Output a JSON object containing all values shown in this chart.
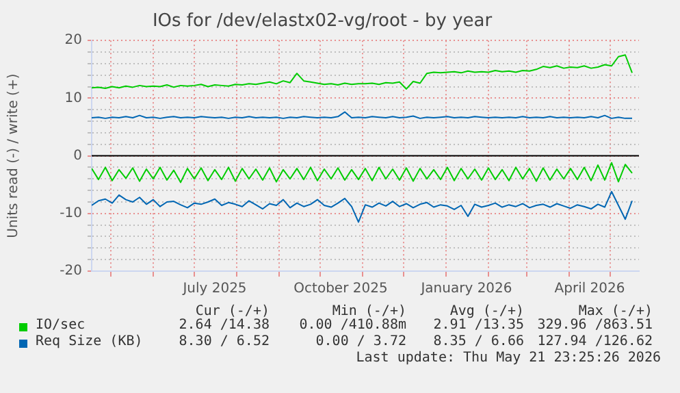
{
  "chart_data": {
    "type": "line",
    "title": "IOs for /dev/elastx02-vg/root - by year",
    "ylabel": "Units read (-) / write (+)",
    "x": [
      "2025-04-17",
      "2025-04-22",
      "2025-04-27",
      "2025-05-02",
      "2025-05-07",
      "2025-05-12",
      "2025-05-17",
      "2025-05-22",
      "2025-05-27",
      "2025-06-01",
      "2025-06-06",
      "2025-06-11",
      "2025-06-16",
      "2025-06-21",
      "2025-06-26",
      "2025-07-01",
      "2025-07-06",
      "2025-07-11",
      "2025-07-16",
      "2025-07-21",
      "2025-07-26",
      "2025-07-31",
      "2025-08-05",
      "2025-08-10",
      "2025-08-15",
      "2025-08-20",
      "2025-08-25",
      "2025-08-30",
      "2025-09-04",
      "2025-09-09",
      "2025-09-14",
      "2025-09-19",
      "2025-09-24",
      "2025-09-29",
      "2025-10-04",
      "2025-10-09",
      "2025-10-14",
      "2025-10-19",
      "2025-10-24",
      "2025-10-29",
      "2025-11-03",
      "2025-11-08",
      "2025-11-13",
      "2025-11-18",
      "2025-11-23",
      "2025-11-28",
      "2025-12-03",
      "2025-12-08",
      "2025-12-13",
      "2025-12-18",
      "2025-12-23",
      "2025-12-28",
      "2026-01-02",
      "2026-01-07",
      "2026-01-12",
      "2026-01-17",
      "2026-01-22",
      "2026-01-27",
      "2026-02-01",
      "2026-02-06",
      "2026-02-11",
      "2026-02-16",
      "2026-02-21",
      "2026-02-26",
      "2026-03-03",
      "2026-03-08",
      "2026-03-13",
      "2026-03-18",
      "2026-03-23",
      "2026-03-28",
      "2026-04-02",
      "2026-04-07",
      "2026-04-12",
      "2026-04-17",
      "2026-04-22",
      "2026-04-27",
      "2026-05-02",
      "2026-05-07",
      "2026-05-12",
      "2026-05-17"
    ],
    "series": [
      {
        "name": "IO/sec",
        "color": "#00cc00",
        "values": [
          11.8,
          11.9,
          11.7,
          12.0,
          11.8,
          12.1,
          11.9,
          12.2,
          12.0,
          12.1,
          12.0,
          12.3,
          11.9,
          12.2,
          12.1,
          12.2,
          12.4,
          12.0,
          12.3,
          12.2,
          12.1,
          12.4,
          12.3,
          12.5,
          12.4,
          12.6,
          12.8,
          12.5,
          13.0,
          12.7,
          14.3,
          13.0,
          12.8,
          12.6,
          12.4,
          12.5,
          12.3,
          12.6,
          12.4,
          12.5,
          12.5,
          12.6,
          12.4,
          12.7,
          12.6,
          12.8,
          11.6,
          12.9,
          12.6,
          14.3,
          14.5,
          14.4,
          14.5,
          14.6,
          14.4,
          14.7,
          14.5,
          14.6,
          14.5,
          14.8,
          14.6,
          14.7,
          14.5,
          14.8,
          14.7,
          15.0,
          15.5,
          15.3,
          15.6,
          15.2,
          15.4,
          15.3,
          15.6,
          15.2,
          15.4,
          15.8,
          15.6,
          17.2,
          17.5,
          14.4
        ]
      },
      {
        "color": "#00cc00",
        "values": [
          -2.2,
          -4.1,
          -2.0,
          -4.3,
          -2.4,
          -3.9,
          -2.1,
          -4.4,
          -2.3,
          -4.0,
          -2.0,
          -4.2,
          -2.5,
          -4.6,
          -2.2,
          -4.0,
          -2.1,
          -4.3,
          -2.4,
          -4.1,
          -2.0,
          -4.4,
          -2.2,
          -4.0,
          -2.3,
          -4.2,
          -2.1,
          -4.5,
          -2.4,
          -4.0,
          -2.2,
          -4.1,
          -2.0,
          -4.3,
          -2.3,
          -4.0,
          -2.1,
          -4.2,
          -2.4,
          -4.1,
          -2.2,
          -4.3,
          -2.0,
          -4.0,
          -2.3,
          -4.2,
          -2.1,
          -4.4,
          -2.2,
          -4.0,
          -2.4,
          -4.1,
          -2.0,
          -4.3,
          -2.2,
          -4.0,
          -2.3,
          -4.2,
          -2.1,
          -4.1,
          -2.4,
          -4.3,
          -2.0,
          -4.0,
          -2.2,
          -4.4,
          -2.1,
          -4.2,
          -2.3,
          -4.0,
          -2.2,
          -4.1,
          -2.0,
          -4.3,
          -1.6,
          -4.2,
          -1.2,
          -4.5,
          -1.5,
          -3.0
        ]
      },
      {
        "name": "Req Size (KB)",
        "color": "#0066b3",
        "values": [
          6.6,
          6.7,
          6.5,
          6.7,
          6.6,
          6.8,
          6.6,
          7.0,
          6.6,
          6.7,
          6.5,
          6.7,
          6.8,
          6.6,
          6.7,
          6.6,
          6.8,
          6.7,
          6.6,
          6.7,
          6.5,
          6.7,
          6.6,
          6.8,
          6.6,
          6.7,
          6.6,
          6.7,
          6.5,
          6.7,
          6.6,
          6.8,
          6.7,
          6.6,
          6.7,
          6.6,
          6.8,
          7.6,
          6.6,
          6.7,
          6.6,
          6.8,
          6.7,
          6.6,
          6.8,
          6.6,
          6.7,
          6.9,
          6.5,
          6.7,
          6.6,
          6.7,
          6.8,
          6.6,
          6.7,
          6.6,
          6.8,
          6.7,
          6.6,
          6.7,
          6.6,
          6.7,
          6.6,
          6.8,
          6.6,
          6.7,
          6.6,
          6.8,
          6.6,
          6.7,
          6.6,
          6.7,
          6.6,
          6.8,
          6.6,
          7.0,
          6.5,
          6.7,
          6.5,
          6.5
        ]
      },
      {
        "color": "#0066b3",
        "values": [
          -8.6,
          -7.8,
          -7.5,
          -8.2,
          -6.8,
          -7.6,
          -8.0,
          -7.2,
          -8.4,
          -7.6,
          -8.8,
          -8.0,
          -7.9,
          -8.5,
          -9.0,
          -8.2,
          -8.4,
          -8.0,
          -7.5,
          -8.6,
          -8.1,
          -8.4,
          -8.8,
          -7.8,
          -8.5,
          -9.2,
          -8.3,
          -8.6,
          -7.6,
          -9.0,
          -8.2,
          -8.8,
          -8.4,
          -7.6,
          -8.6,
          -8.9,
          -8.2,
          -7.4,
          -8.8,
          -11.5,
          -8.5,
          -8.9,
          -8.2,
          -8.7,
          -7.9,
          -8.8,
          -8.3,
          -9.0,
          -8.4,
          -8.1,
          -8.9,
          -8.5,
          -8.7,
          -9.3,
          -8.6,
          -10.5,
          -8.4,
          -8.9,
          -8.6,
          -8.2,
          -8.9,
          -8.5,
          -8.8,
          -8.3,
          -9.0,
          -8.6,
          -8.4,
          -8.9,
          -8.3,
          -8.7,
          -9.1,
          -8.5,
          -8.8,
          -9.2,
          -8.4,
          -8.9,
          -6.2,
          -8.6,
          -11.0,
          -7.8
        ]
      }
    ],
    "xlim": [
      "2025-04-17",
      "2026-05-22"
    ],
    "xticks": [
      {
        "value": "2025-05-01",
        "label": null
      },
      {
        "value": "2025-06-01",
        "label": null
      },
      {
        "value": "2025-07-01",
        "label": null
      },
      {
        "value": "2025-07-16",
        "label": "July 2025"
      },
      {
        "value": "2025-08-01",
        "label": null
      },
      {
        "value": "2025-09-01",
        "label": null
      },
      {
        "value": "2025-10-01",
        "label": null
      },
      {
        "value": "2025-10-16",
        "label": "October 2025"
      },
      {
        "value": "2025-11-01",
        "label": null
      },
      {
        "value": "2025-12-01",
        "label": null
      },
      {
        "value": "2026-01-01",
        "label": null
      },
      {
        "value": "2026-01-16",
        "label": "January 2026"
      },
      {
        "value": "2026-02-01",
        "label": null
      },
      {
        "value": "2026-03-01",
        "label": null
      },
      {
        "value": "2026-04-01",
        "label": null
      },
      {
        "value": "2026-04-16",
        "label": "April 2026"
      },
      {
        "value": "2026-05-01",
        "label": null
      }
    ],
    "ylim": [
      -20,
      20
    ],
    "yticks": [
      -20,
      {
        "value": -18,
        "label": null
      },
      {
        "value": -16,
        "label": null
      },
      {
        "value": -14,
        "label": null
      },
      {
        "value": -12,
        "label": null
      },
      -10,
      {
        "value": -8,
        "label": null
      },
      {
        "value": -6,
        "label": null
      },
      {
        "value": -4,
        "label": null
      },
      {
        "value": -2,
        "label": null
      },
      0,
      {
        "value": 2,
        "label": null
      },
      {
        "value": 4,
        "label": null
      },
      {
        "value": 6,
        "label": null
      },
      {
        "value": 8,
        "label": null
      },
      10,
      {
        "value": 12,
        "label": null
      },
      {
        "value": 14,
        "label": null
      },
      {
        "value": 16,
        "label": null
      },
      {
        "value": 18,
        "label": null
      },
      20
    ],
    "ref_lines": [
      {
        "axis": "y",
        "value": 0,
        "color": "#000000"
      }
    ],
    "grid": true,
    "legend": "bottom",
    "marker": "none",
    "line_style": "solid",
    "annotations": [
      "Cur (-/+)",
      "Min (-/+)",
      "Avg (-/+)",
      "Max (-/+)",
      "2.64 /14.38",
      "0.00 /410.88m",
      "2.91 /13.35",
      "329.96 /863.51",
      "8.30 / 6.52",
      "0.00 / 3.72",
      "8.35 / 6.66",
      "127.94 /126.62",
      "Last update: Thu May 21 23:25:26 2026"
    ]
  }
}
